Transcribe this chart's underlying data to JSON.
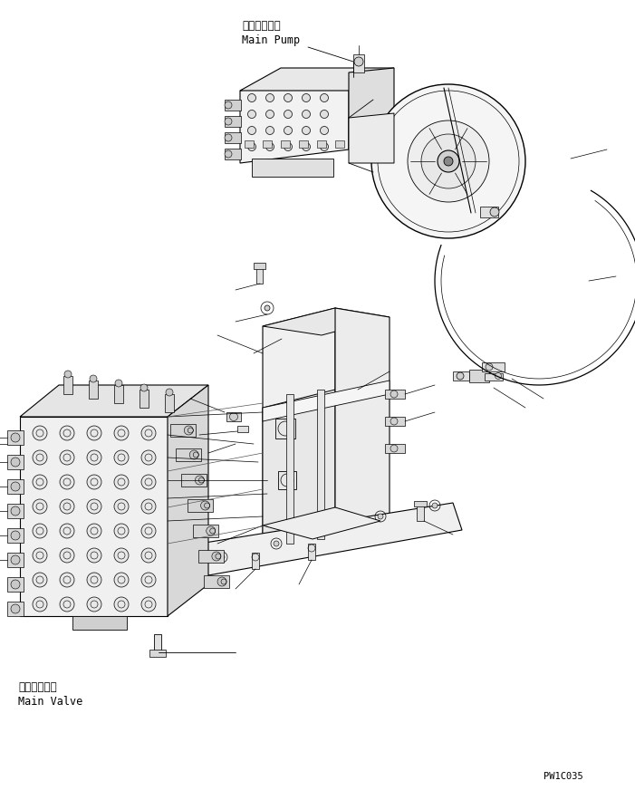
{
  "bg_color": "#ffffff",
  "line_color": "#000000",
  "fig_width": 7.01,
  "fig_height": 8.83,
  "dpi": 100,
  "label_main_pump_jp": "メインポンプ",
  "label_main_pump_en": "Main Pump",
  "label_main_valve_jp": "メインバルブ",
  "label_main_valve_en": "Main Valve",
  "part_number": "PW1C035",
  "font_size_label": 8.5,
  "font_size_part": 7.5
}
